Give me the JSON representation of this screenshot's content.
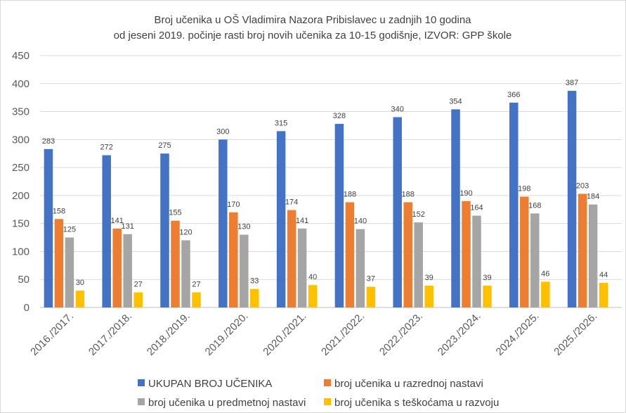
{
  "chart_data": {
    "type": "bar",
    "title": "Broj učenika u OŠ Vladimira Nazora Pribislavec u zadnjih 10 godina",
    "subtitle": "od jeseni 2019. počinje rasti broj novih učenika za 10-15 godišnje, IZVOR: GPP škole",
    "categories": [
      "2016./2017.",
      "2017./2018.",
      "2018./2019.",
      "2019./2020.",
      "2020./2021.",
      "2021./2022.",
      "2022./2023.",
      "2023./2024.",
      "2024./2025.",
      "2025./2026."
    ],
    "series": [
      {
        "name": "UKUPAN BROJ UČENIKA",
        "color": "#4472C4",
        "values": [
          283,
          272,
          275,
          300,
          315,
          328,
          340,
          354,
          366,
          387
        ]
      },
      {
        "name": "broj učenika u razrednoj nastavi",
        "color": "#ED7D31",
        "values": [
          158,
          141,
          155,
          170,
          174,
          188,
          188,
          190,
          198,
          203
        ]
      },
      {
        "name": "broj učenika u predmetnoj nastavi",
        "color": "#A5A5A5",
        "values": [
          125,
          131,
          120,
          130,
          141,
          140,
          152,
          164,
          168,
          184
        ]
      },
      {
        "name": "broj učenika s teškoćama u razvoju",
        "color": "#FFC000",
        "values": [
          30,
          27,
          27,
          33,
          40,
          37,
          39,
          39,
          46,
          44
        ]
      }
    ],
    "ylim": [
      0,
      450
    ],
    "yticks": [
      0,
      50,
      100,
      150,
      200,
      250,
      300,
      350,
      400,
      450
    ],
    "grid": true,
    "legend_position": "bottom",
    "data_labels": true
  }
}
